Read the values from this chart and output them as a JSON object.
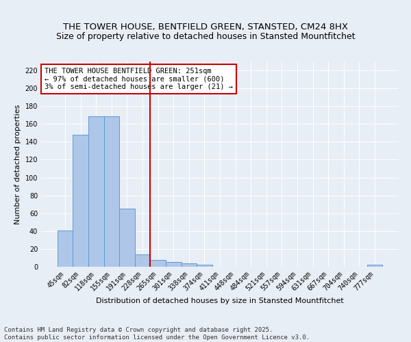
{
  "title": "THE TOWER HOUSE, BENTFIELD GREEN, STANSTED, CM24 8HX",
  "subtitle": "Size of property relative to detached houses in Stansted Mountfitchet",
  "xlabel": "Distribution of detached houses by size in Stansted Mountfitchet",
  "ylabel": "Number of detached properties",
  "bin_labels": [
    "45sqm",
    "82sqm",
    "118sqm",
    "155sqm",
    "191sqm",
    "228sqm",
    "265sqm",
    "301sqm",
    "338sqm",
    "374sqm",
    "411sqm",
    "448sqm",
    "484sqm",
    "521sqm",
    "557sqm",
    "594sqm",
    "631sqm",
    "667sqm",
    "704sqm",
    "740sqm",
    "777sqm"
  ],
  "bar_values": [
    41,
    148,
    169,
    169,
    65,
    14,
    8,
    5,
    4,
    2,
    0,
    0,
    0,
    0,
    0,
    0,
    0,
    0,
    0,
    0,
    2
  ],
  "bar_color": "#aec6e8",
  "bar_edge_color": "#5b9bd5",
  "vline_x": 5.5,
  "vline_color": "#cc0000",
  "annotation_text": "THE TOWER HOUSE BENTFIELD GREEN: 251sqm\n← 97% of detached houses are smaller (600)\n3% of semi-detached houses are larger (21) →",
  "annotation_box_color": "#ffffff",
  "annotation_box_edge": "#cc0000",
  "ylim": [
    0,
    230
  ],
  "yticks": [
    0,
    20,
    40,
    60,
    80,
    100,
    120,
    140,
    160,
    180,
    200,
    220
  ],
  "bg_color": "#e8eef6",
  "footer": "Contains HM Land Registry data © Crown copyright and database right 2025.\nContains public sector information licensed under the Open Government Licence v3.0.",
  "title_fontsize": 9.5,
  "ylabel_fontsize": 8,
  "xlabel_fontsize": 8,
  "tick_fontsize": 7,
  "annotation_fontsize": 7.5,
  "footer_fontsize": 6.5
}
